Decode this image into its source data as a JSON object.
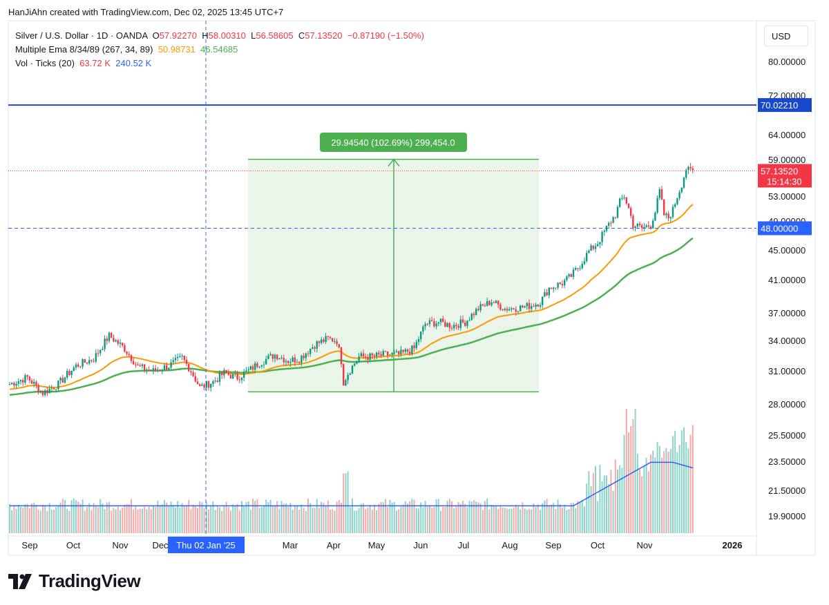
{
  "header": {
    "text": "HanJiAhn created with TradingView.com, Dec 02, 2025 13:45 UTC+7"
  },
  "legend": {
    "symbol": "Silver / U.S. Dollar · 1D · OANDA",
    "o_label": "O",
    "o_value": "57.92270",
    "h_label": "H",
    "h_value": "58.00310",
    "l_label": "L",
    "l_value": "56.58605",
    "c_label": "C",
    "c_value": "57.13520",
    "change": "−0.87190 (−1.50%)",
    "ema_label": "Multiple Ema 8/34/89 (267, 34, 89)",
    "ema_value1": "50.98731",
    "ema_value2": "46.54685",
    "vol_label": "Vol · Ticks (20)",
    "vol_value1": "63.72 K",
    "vol_value2": "240.52 K"
  },
  "currency": "USD",
  "brand": "TradingView",
  "colors": {
    "up": "#089981",
    "down": "#f23645",
    "ema_short": "#ff9800",
    "ema_long": "#4caf50",
    "hline": "#1848cc",
    "crosshair": "#2962ff",
    "vol_ma": "#2962ff",
    "measure": "#4caf50"
  },
  "chart_data": {
    "type": "candlestick",
    "symbol": "Silver / U.S. Dollar",
    "y_ticks": [
      "80.00000",
      "72.00000",
      "64.00000",
      "59.00000",
      "53.00000",
      "49.00000",
      "45.00000",
      "41.00000",
      "37.00000",
      "34.00000",
      "31.00000",
      "28.00000",
      "25.50000",
      "23.50000",
      "21.50000",
      "19.90000"
    ],
    "x_ticks": [
      "Sep",
      "Oct",
      "Nov",
      "Dec",
      "Mar",
      "Apr",
      "May",
      "Jun",
      "Jul",
      "Aug",
      "Sep",
      "Oct",
      "Nov",
      "2026"
    ],
    "crosshair_date": "Thu 02 Jan '25",
    "horizontal_line": "70.02210",
    "dashed_line": "48.00000",
    "last_price": "57.13520",
    "countdown": "15:14:30",
    "measure_label": "29.94540 (102.69%) 299,454.0",
    "measure_range": [
      29.1,
      59.05
    ],
    "close_path": [
      [
        0,
        29.8
      ],
      [
        8,
        30.4
      ],
      [
        15,
        29.0
      ],
      [
        22,
        29.8
      ],
      [
        30,
        31.5
      ],
      [
        38,
        32.2
      ],
      [
        45,
        34.5
      ],
      [
        52,
        33.2
      ],
      [
        58,
        31.4
      ],
      [
        65,
        31.0
      ],
      [
        72,
        31.5
      ],
      [
        78,
        32.3
      ],
      [
        82,
        31.0
      ],
      [
        86,
        29.5
      ],
      [
        92,
        30.0
      ],
      [
        97,
        30.8
      ],
      [
        103,
        30.4
      ],
      [
        108,
        31.0
      ],
      [
        113,
        31.8
      ],
      [
        120,
        32.6
      ],
      [
        126,
        32.0
      ],
      [
        131,
        32.2
      ],
      [
        138,
        33.6
      ],
      [
        144,
        34.2
      ],
      [
        148,
        34.0
      ],
      [
        150,
        32.0
      ],
      [
        151,
        30.0
      ],
      [
        153,
        30.8
      ],
      [
        158,
        32.4
      ],
      [
        164,
        32.4
      ],
      [
        170,
        32.6
      ],
      [
        176,
        32.6
      ],
      [
        183,
        33.2
      ],
      [
        188,
        35.8
      ],
      [
        194,
        36.0
      ],
      [
        200,
        35.6
      ],
      [
        206,
        36.0
      ],
      [
        212,
        37.5
      ],
      [
        218,
        38.4
      ],
      [
        224,
        37.5
      ],
      [
        230,
        37.6
      ],
      [
        236,
        37.9
      ],
      [
        240,
        38.3
      ],
      [
        244,
        40.0
      ],
      [
        250,
        40.6
      ],
      [
        254,
        41.5
      ],
      [
        258,
        43.0
      ],
      [
        262,
        44.8
      ],
      [
        266,
        46.0
      ],
      [
        270,
        48.0
      ],
      [
        274,
        50.0
      ],
      [
        276,
        52.0
      ],
      [
        278,
        53.0
      ],
      [
        280,
        51.0
      ],
      [
        282,
        48.5
      ],
      [
        286,
        48.0
      ],
      [
        290,
        48.5
      ],
      [
        292,
        50.5
      ],
      [
        294,
        53.8
      ],
      [
        296,
        50.0
      ],
      [
        298,
        49.5
      ],
      [
        300,
        50.8
      ],
      [
        302,
        53.0
      ],
      [
        304,
        55.0
      ],
      [
        306,
        57.5
      ],
      [
        307,
        57.1
      ]
    ],
    "ema_fast_start": 29.3,
    "ema_slow_start": 28.8,
    "ema_fast_last": "50.98731",
    "ema_slow_last": "46.54685"
  }
}
